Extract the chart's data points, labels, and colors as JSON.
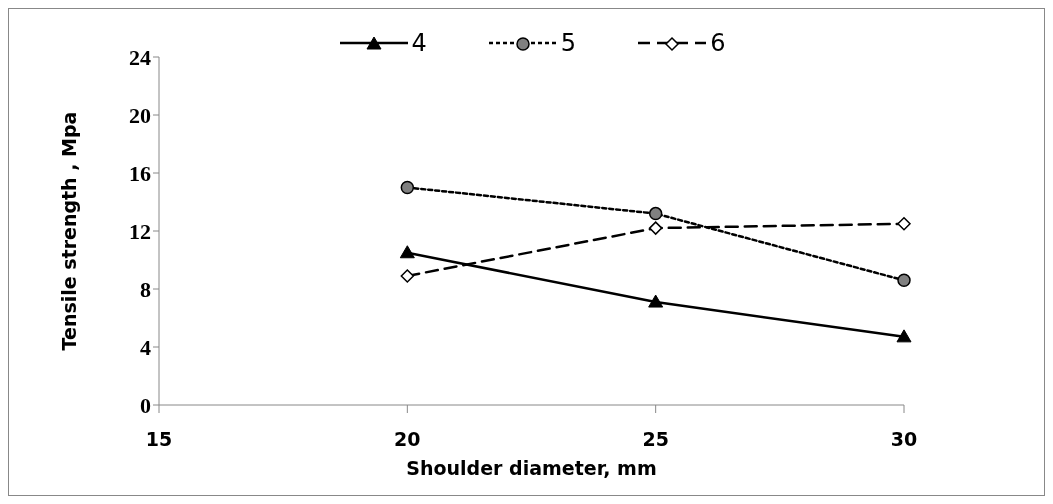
{
  "chart_data": {
    "type": "line",
    "xlabel": "Shoulder diameter, mm",
    "ylabel": "Tensile strength , Mpa",
    "x": [
      20,
      25,
      30
    ],
    "series": [
      {
        "name": "4",
        "color": "#000000",
        "values": [
          10.5,
          7.1,
          4.7
        ],
        "marker": "triangle",
        "line_style": "solid"
      },
      {
        "name": "5",
        "color": "#000000",
        "values": [
          15.0,
          13.2,
          8.6
        ],
        "marker": "circle",
        "line_style": "dotted"
      },
      {
        "name": "6",
        "color": "#000000",
        "values": [
          8.9,
          12.2,
          12.5
        ],
        "marker": "diamond",
        "line_style": "dashed"
      }
    ],
    "xlim": [
      15,
      30
    ],
    "xticks": [
      15,
      20,
      25,
      30
    ],
    "ylim": [
      0,
      24
    ],
    "yticks": [
      0,
      4,
      8,
      12,
      16,
      20,
      24
    ],
    "grid": false,
    "legend": "top"
  }
}
